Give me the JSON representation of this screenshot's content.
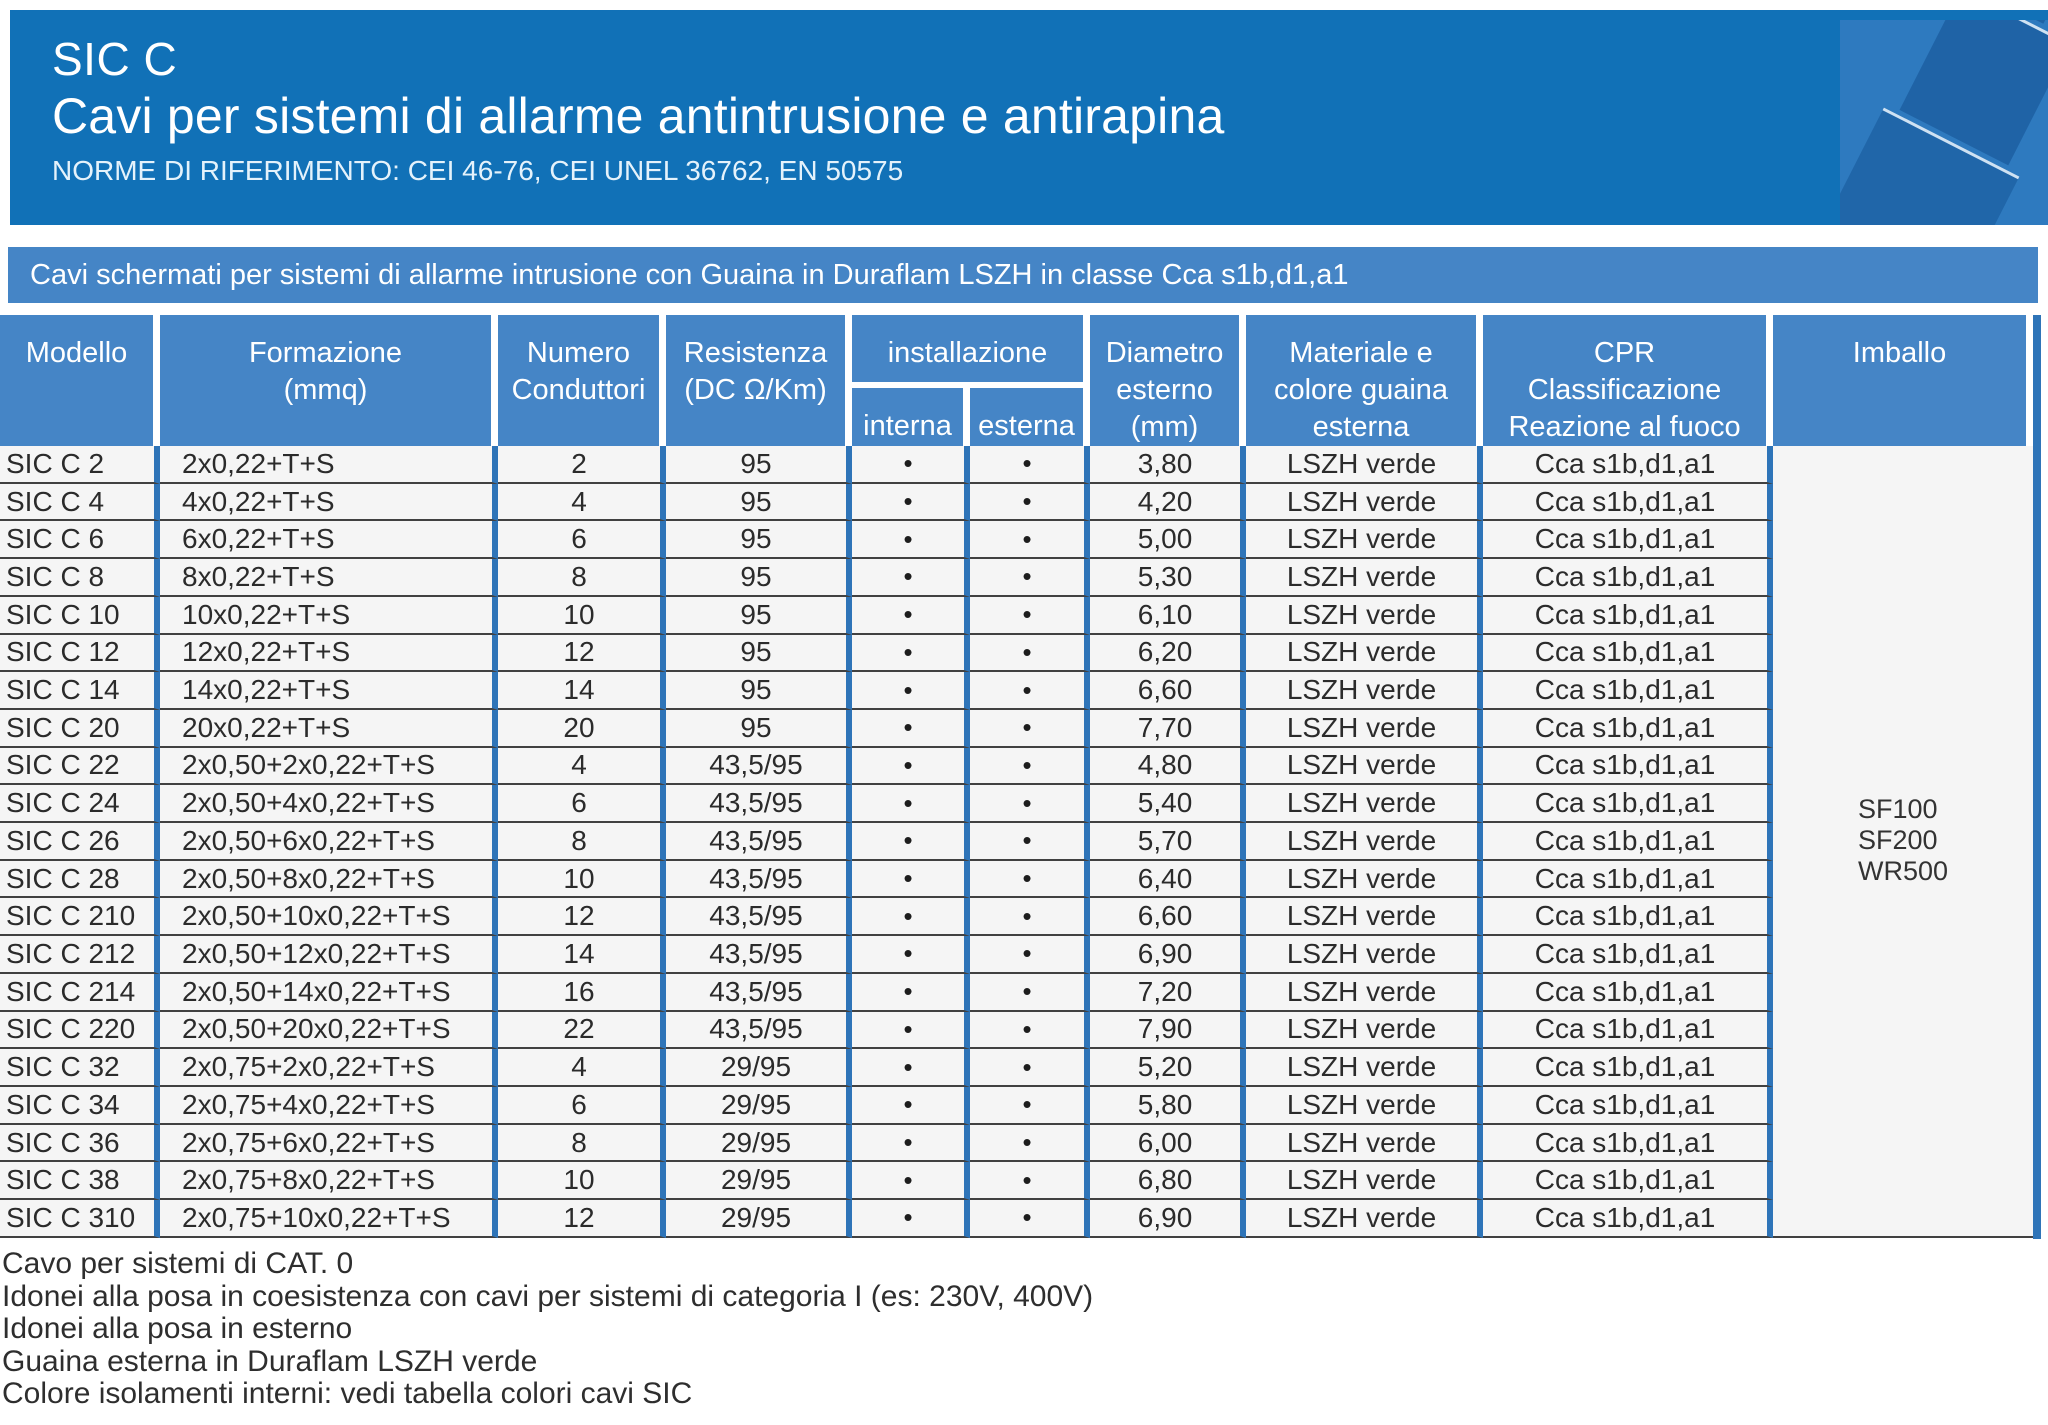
{
  "header": {
    "product_code": "SIC C",
    "title": "Cavi per sistemi di allarme antintrusione e antirapina",
    "norms": "NORME DI RIFERIMENTO: CEI 46-76, CEI UNEL 36762, EN 50575"
  },
  "decoration": {
    "corner_graphic_icon": "cable-connector-illustration"
  },
  "banner": {
    "text": "Cavi schermati per sistemi di allarme intrusione con Guaina in Duraflam LSZH in classe Cca s1b,d1,a1"
  },
  "colors": {
    "header_band": "#1171b7",
    "banner_blue": "#4585c6",
    "column_border_blue": "#2e74b8",
    "row_line": "#414141",
    "row_background": "#f5f5f5",
    "corner_background": "#2e7abf",
    "corner_cable": "#1f63a6"
  },
  "table": {
    "headers": {
      "modello": "Modello",
      "formazione": "Formazione\n(mmq)",
      "numero_conduttori": "Numero\nConduttori",
      "resistenza": "Resistenza\n(DC Ω/Km)",
      "installazione": "installazione",
      "interna": "interna",
      "esterna": "esterna",
      "diametro": "Diametro\nesterno\n(mm)",
      "materiale": "Materiale e\ncolore guaina\nesterna",
      "cpr": "CPR\nClassificazione\nReazione al fuoco",
      "imballo": "Imballo"
    },
    "rows": [
      [
        "SIC C 2",
        "2x0,22+T+S",
        "2",
        "95",
        "•",
        "•",
        "3,80",
        "LSZH verde",
        "Cca s1b,d1,a1"
      ],
      [
        "SIC C 4",
        "4x0,22+T+S",
        "4",
        "95",
        "•",
        "•",
        "4,20",
        "LSZH verde",
        "Cca s1b,d1,a1"
      ],
      [
        "SIC C 6",
        "6x0,22+T+S",
        "6",
        "95",
        "•",
        "•",
        "5,00",
        "LSZH verde",
        "Cca s1b,d1,a1"
      ],
      [
        "SIC C 8",
        "8x0,22+T+S",
        "8",
        "95",
        "•",
        "•",
        "5,30",
        "LSZH verde",
        "Cca s1b,d1,a1"
      ],
      [
        "SIC C 10",
        "10x0,22+T+S",
        "10",
        "95",
        "•",
        "•",
        "6,10",
        "LSZH verde",
        "Cca s1b,d1,a1"
      ],
      [
        "SIC C 12",
        "12x0,22+T+S",
        "12",
        "95",
        "•",
        "•",
        "6,20",
        "LSZH verde",
        "Cca s1b,d1,a1"
      ],
      [
        "SIC C 14",
        "14x0,22+T+S",
        "14",
        "95",
        "•",
        "•",
        "6,60",
        "LSZH verde",
        "Cca s1b,d1,a1"
      ],
      [
        "SIC C 20",
        "20x0,22+T+S",
        "20",
        "95",
        "•",
        "•",
        "7,70",
        "LSZH verde",
        "Cca s1b,d1,a1"
      ],
      [
        "SIC C 22",
        "2x0,50+2x0,22+T+S",
        "4",
        "43,5/95",
        "•",
        "•",
        "4,80",
        "LSZH verde",
        "Cca s1b,d1,a1"
      ],
      [
        "SIC C 24",
        "2x0,50+4x0,22+T+S",
        "6",
        "43,5/95",
        "•",
        "•",
        "5,40",
        "LSZH verde",
        "Cca s1b,d1,a1"
      ],
      [
        "SIC C 26",
        "2x0,50+6x0,22+T+S",
        "8",
        "43,5/95",
        "•",
        "•",
        "5,70",
        "LSZH verde",
        "Cca s1b,d1,a1"
      ],
      [
        "SIC C 28",
        "2x0,50+8x0,22+T+S",
        "10",
        "43,5/95",
        "•",
        "•",
        "6,40",
        "LSZH verde",
        "Cca s1b,d1,a1"
      ],
      [
        "SIC C 210",
        "2x0,50+10x0,22+T+S",
        "12",
        "43,5/95",
        "•",
        "•",
        "6,60",
        "LSZH verde",
        "Cca s1b,d1,a1"
      ],
      [
        "SIC C 212",
        "2x0,50+12x0,22+T+S",
        "14",
        "43,5/95",
        "•",
        "•",
        "6,90",
        "LSZH verde",
        "Cca s1b,d1,a1"
      ],
      [
        "SIC C 214",
        "2x0,50+14x0,22+T+S",
        "16",
        "43,5/95",
        "•",
        "•",
        "7,20",
        "LSZH verde",
        "Cca s1b,d1,a1"
      ],
      [
        "SIC C 220",
        "2x0,50+20x0,22+T+S",
        "22",
        "43,5/95",
        "•",
        "•",
        "7,90",
        "LSZH verde",
        "Cca s1b,d1,a1"
      ],
      [
        "SIC C 32",
        "2x0,75+2x0,22+T+S",
        "4",
        "29/95",
        "•",
        "•",
        "5,20",
        "LSZH verde",
        "Cca s1b,d1,a1"
      ],
      [
        "SIC C 34",
        "2x0,75+4x0,22+T+S",
        "6",
        "29/95",
        "•",
        "•",
        "5,80",
        "LSZH verde",
        "Cca s1b,d1,a1"
      ],
      [
        "SIC C 36",
        "2x0,75+6x0,22+T+S",
        "8",
        "29/95",
        "•",
        "•",
        "6,00",
        "LSZH verde",
        "Cca s1b,d1,a1"
      ],
      [
        "SIC C 38",
        "2x0,75+8x0,22+T+S",
        "10",
        "29/95",
        "•",
        "•",
        "6,80",
        "LSZH verde",
        "Cca s1b,d1,a1"
      ],
      [
        "SIC C 310",
        "2x0,75+10x0,22+T+S",
        "12",
        "29/95",
        "•",
        "•",
        "6,90",
        "LSZH verde",
        "Cca s1b,d1,a1"
      ]
    ],
    "imballo_value": "SF100\nSF200\nWR500"
  },
  "notes": [
    "Cavo per sistemi di CAT. 0",
    "Idonei alla posa in coesistenza con cavi per sistemi di categoria I (es: 230V, 400V)",
    "Idonei alla posa in esterno",
    "Guaina esterna in Duraflam LSZH verde",
    "Colore isolamenti interni: vedi tabella colori cavi SIC"
  ]
}
